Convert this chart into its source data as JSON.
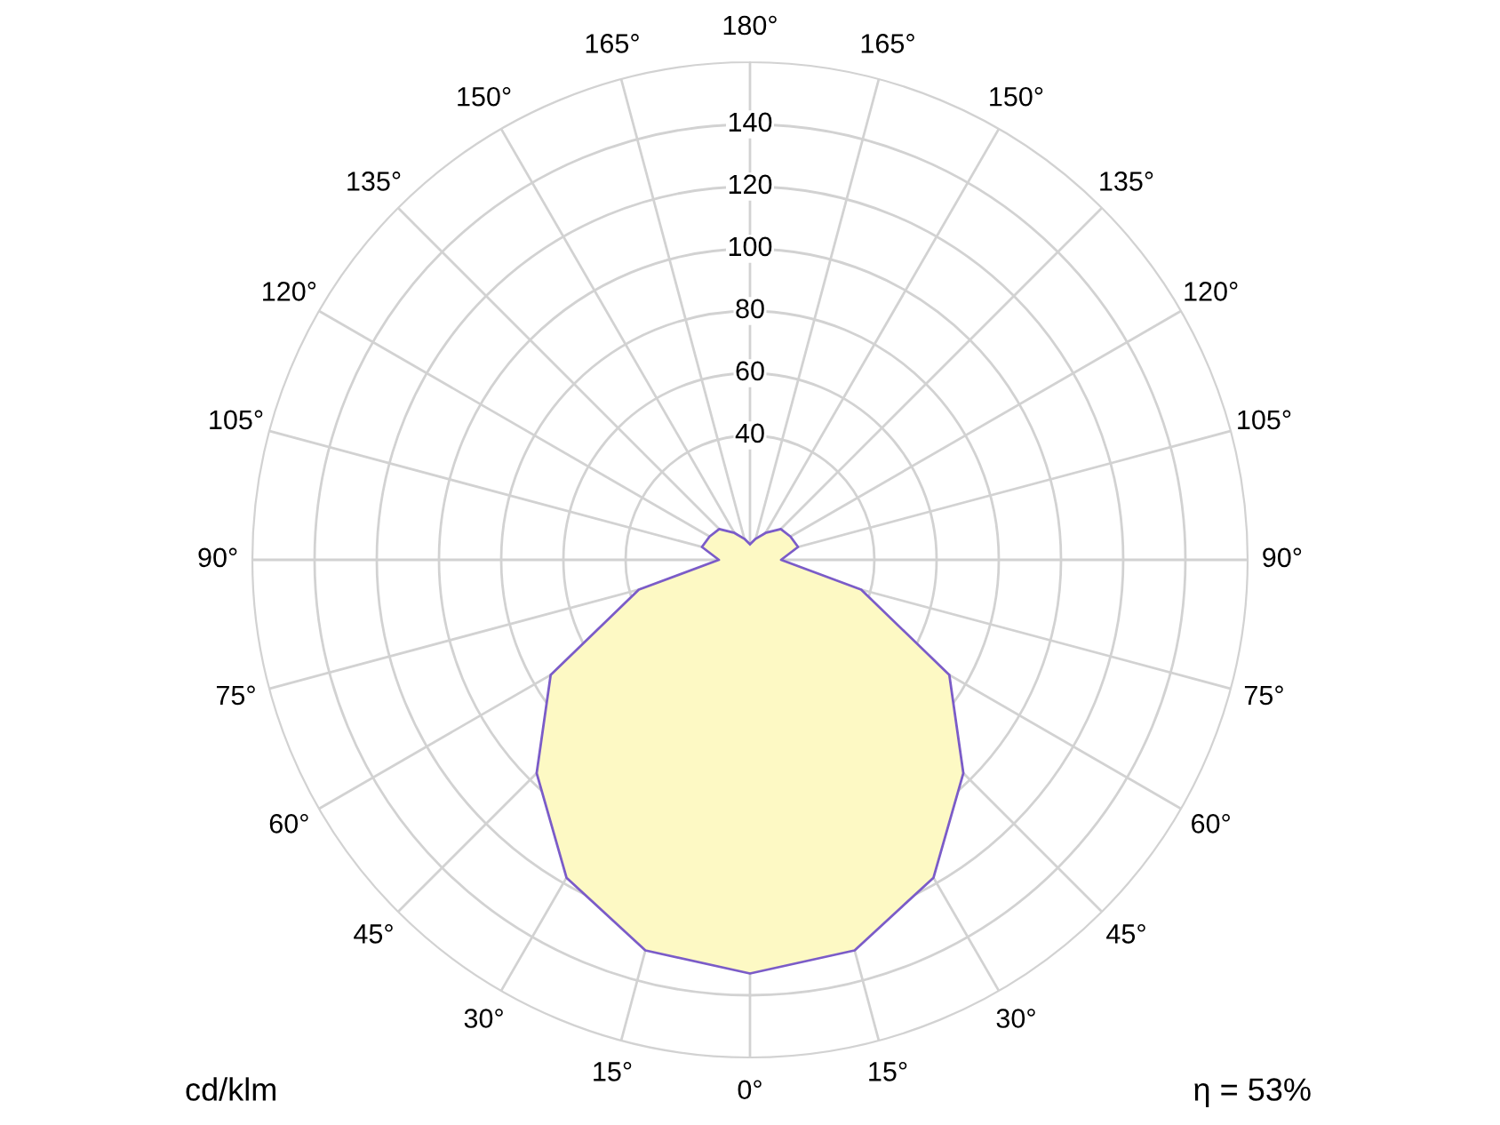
{
  "chart_data": {
    "type": "radar",
    "categories": [
      "180°",
      "165°",
      "150°",
      "135°",
      "120°",
      "105°",
      "90°",
      "75°",
      "60°",
      "45°",
      "30°",
      "15°",
      "0°",
      "15°",
      "30°",
      "45°",
      "60°",
      "75°",
      "90°",
      "105°",
      "120°",
      "135°",
      "150°",
      "165°"
    ],
    "series": [
      {
        "type": "area",
        "color": "#fdf9c4",
        "values": [
          5,
          7,
          10,
          14,
          15,
          16,
          10,
          37,
          74,
          97,
          118,
          130,
          133,
          130,
          118,
          97,
          74,
          37,
          10,
          16,
          15,
          14,
          10,
          7
        ]
      }
    ],
    "ylim": [
      0,
      160
    ],
    "yticks": [
      40,
      60,
      80,
      100,
      120,
      140
    ],
    "ylabel": "cd/klm",
    "annotations": [
      "η = 53%"
    ],
    "grid": true,
    "line_style": "solid"
  }
}
